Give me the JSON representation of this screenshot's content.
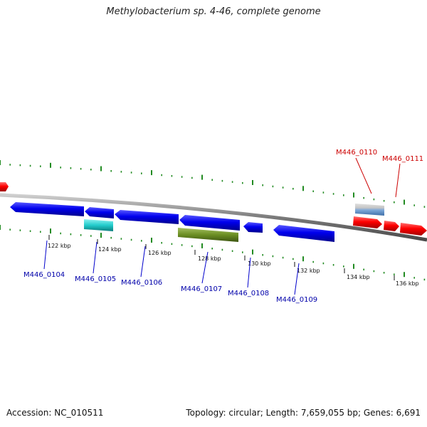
{
  "title": "Methylobacterium sp. 4-46, complete genome",
  "footer": {
    "accession": "Accession: NC_010511",
    "summary": "Topology: circular; Length: 7,659,055 bp; Genes: 6,691"
  },
  "colors": {
    "forward_gene": "#ff0000",
    "reverse_gene": "#0000ee",
    "label_forward": "#cc0000",
    "label_reverse": "#0000aa",
    "cyan_feature": "#22cccc",
    "olive_feature": "#6b8e23",
    "steel_feature": "#6a9ad0",
    "grey_feature": "#c8c8c8",
    "backbone": "#888888",
    "gc_ticks": "#228b22"
  },
  "scale": {
    "ticks": [
      {
        "label": "122 kbp"
      },
      {
        "label": "124 kbp"
      },
      {
        "label": "126 kbp"
      },
      {
        "label": "128 kbp"
      },
      {
        "label": "130 kbp"
      },
      {
        "label": "132 kbp"
      },
      {
        "label": "134 kbp"
      },
      {
        "label": "136 kbp"
      }
    ]
  },
  "genes": {
    "reverse": [
      {
        "label": "M446_0104"
      },
      {
        "label": "M446_0105"
      },
      {
        "label": "M446_0106"
      },
      {
        "label": "M446_0107"
      },
      {
        "label": "M446_0108"
      },
      {
        "label": "M446_0109"
      }
    ],
    "forward": [
      {
        "label": "M446_0110"
      },
      {
        "label": "M446_0111"
      }
    ]
  }
}
